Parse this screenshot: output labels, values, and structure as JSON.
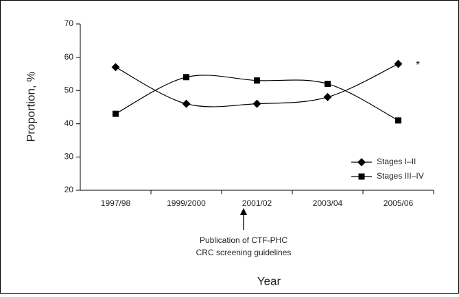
{
  "chart_data": {
    "type": "line",
    "x_label": "Year",
    "y_label": "Proportion, %",
    "categories": [
      "1997/98",
      "1999/2000",
      "2001/02",
      "2003/04",
      "2005/06"
    ],
    "series": [
      {
        "name": "Stages I–II",
        "color": "#000000",
        "marker": "diamond",
        "values": [
          57,
          46,
          46,
          48,
          58
        ]
      },
      {
        "name": "Stages III–IV",
        "color": "#000000",
        "marker": "square",
        "values": [
          43,
          54,
          53,
          52,
          41
        ]
      }
    ],
    "ylim": [
      20,
      70
    ],
    "yticks": [
      20,
      30,
      40,
      50,
      60,
      70
    ],
    "grid": false,
    "smooth": true,
    "legend": "lower right",
    "annotations": [
      "*",
      "Publication of CTF-PHC",
      "CRC screening guidelines"
    ]
  }
}
